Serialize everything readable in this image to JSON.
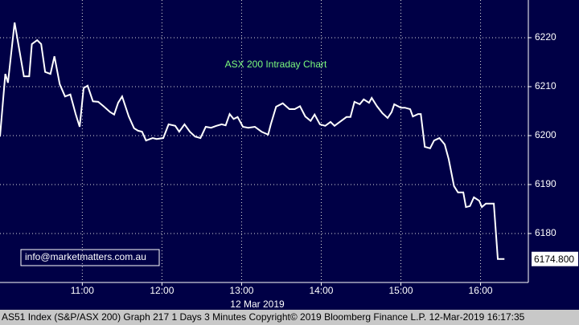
{
  "chart_data": {
    "type": "line",
    "title": "ASX 200 Intraday Chart",
    "annotation": "info@marketmatters.com.au",
    "x_label": "12 Mar 2019",
    "footer": "AS51 Index (S&P/ASX 200) Graph 217 1 Days 3 Minutes Copyright© 2019 Bloomberg Finance L.P. 12-Mar-2019 16:17:35",
    "x": [
      598,
      602,
      604,
      609,
      616,
      620,
      622,
      626,
      629,
      632,
      636,
      639,
      643,
      647,
      651,
      655,
      658,
      661,
      664,
      668,
      672,
      676,
      681,
      684,
      687,
      690,
      695,
      699,
      702,
      705,
      708,
      713,
      716,
      721,
      725,
      730,
      733,
      737,
      741,
      745,
      749,
      753,
      757,
      761,
      765,
      768,
      771,
      774,
      777,
      781,
      785,
      790,
      795,
      800,
      802,
      806,
      811,
      816,
      820,
      824,
      828,
      832,
      835,
      839,
      843,
      847,
      850,
      855,
      859,
      862,
      865,
      869,
      872,
      876,
      878,
      882,
      886,
      890,
      893,
      895,
      900,
      903,
      907,
      909,
      913,
      915,
      918,
      922,
      925,
      929,
      933,
      936,
      940,
      943,
      947,
      949,
      952,
      955,
      959,
      961,
      964,
      970,
      973,
      978
    ],
    "series": [
      {
        "color": "#ffffff",
        "values": [
          6199.8,
          6212.6,
          6210.8,
          6223.1,
          6212.1,
          6212.1,
          6218.7,
          6219.5,
          6218.7,
          6213,
          6212.6,
          6216.2,
          6210.5,
          6208,
          6208.4,
          6204.4,
          6201.8,
          6209.7,
          6210.2,
          6207,
          6206.9,
          6206,
          6204.8,
          6204.3,
          6206.7,
          6208,
          6203.9,
          6201.5,
          6201,
          6200.8,
          6199,
          6199.5,
          6199.3,
          6199.5,
          6202.3,
          6202,
          6200.8,
          6202.3,
          6200.8,
          6199.8,
          6199.5,
          6201.8,
          6201.6,
          6202,
          6202.3,
          6202.1,
          6204.4,
          6203.4,
          6203.8,
          6201.8,
          6201.6,
          6201.8,
          6200.8,
          6200.2,
          6202.3,
          6205.9,
          6206.6,
          6205.4,
          6205.4,
          6206,
          6203.9,
          6203,
          6204.3,
          6202.3,
          6202,
          6202.8,
          6202,
          6203,
          6203.8,
          6203.8,
          6206.9,
          6206.4,
          6207.4,
          6206.7,
          6207.7,
          6206,
          6204.6,
          6203.6,
          6204.8,
          6206.4,
          6205.7,
          6205.7,
          6205.4,
          6203.9,
          6204.4,
          6204.4,
          6197.7,
          6197.4,
          6199,
          6199.5,
          6198.2,
          6195.2,
          6189.7,
          6188.4,
          6188.4,
          6185.4,
          6185.6,
          6187.4,
          6186.7,
          6185.4,
          6186.1,
          6186.1,
          6174.8,
          6174.8
        ]
      }
    ],
    "last_price": {
      "value": 6174.8,
      "label": "6174.800"
    },
    "xlim": [
      598,
      996
    ],
    "xticks": [
      {
        "value": 660,
        "label": "11:00"
      },
      {
        "value": 720,
        "label": "12:00"
      },
      {
        "value": 780,
        "label": "13:00"
      },
      {
        "value": 840,
        "label": "14:00"
      },
      {
        "value": 900,
        "label": "15:00"
      },
      {
        "value": 960,
        "label": "16:00"
      }
    ],
    "ylim": [
      6170,
      6227.7
    ],
    "yticks": [
      6180,
      6190,
      6200,
      6210,
      6220
    ],
    "grid": true
  }
}
